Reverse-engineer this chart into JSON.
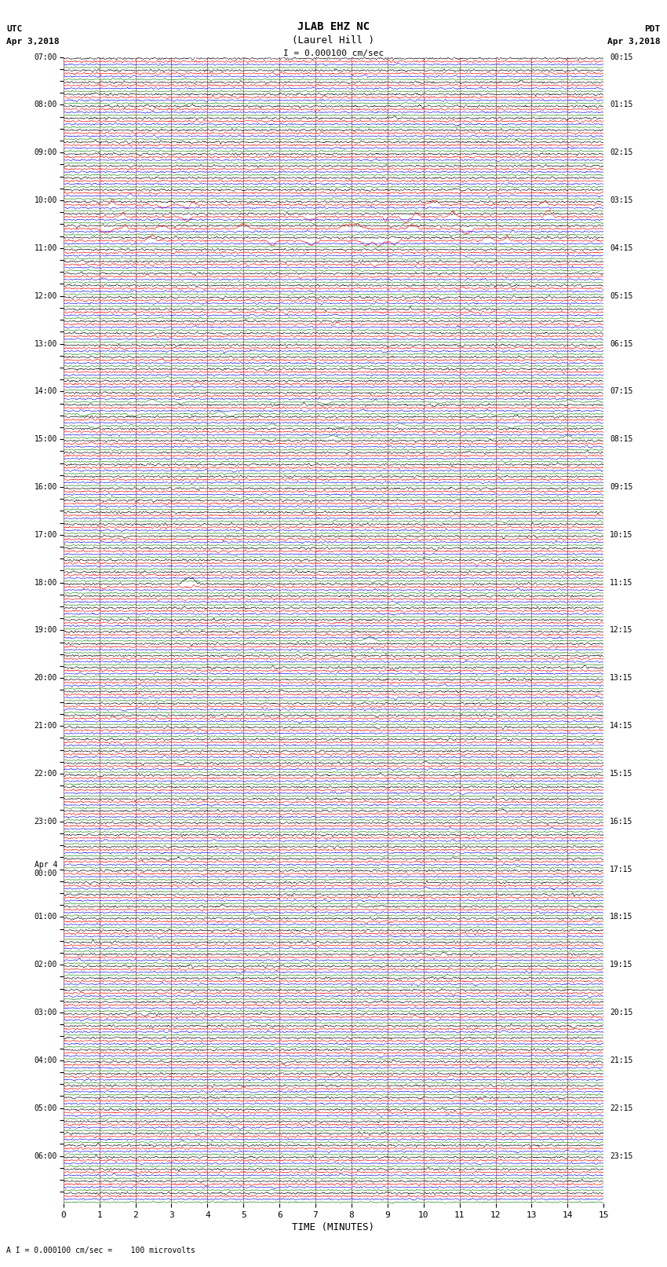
{
  "title_line1": "JLAB EHZ NC",
  "title_line2": "(Laurel Hill )",
  "scale_label": "I = 0.000100 cm/sec",
  "left_header_line1": "UTC",
  "left_header_line2": "Apr 3,2018",
  "right_header_line1": "PDT",
  "right_header_line2": "Apr 3,2018",
  "bottom_label": "TIME (MINUTES)",
  "bottom_note": "A I = 0.000100 cm/sec =    100 microvolts",
  "xlabel_ticks": [
    0,
    1,
    2,
    3,
    4,
    5,
    6,
    7,
    8,
    9,
    10,
    11,
    12,
    13,
    14,
    15
  ],
  "left_times": [
    "07:00",
    "",
    "",
    "",
    "08:00",
    "",
    "",
    "",
    "09:00",
    "",
    "",
    "",
    "10:00",
    "",
    "",
    "",
    "11:00",
    "",
    "",
    "",
    "12:00",
    "",
    "",
    "",
    "13:00",
    "",
    "",
    "",
    "14:00",
    "",
    "",
    "",
    "15:00",
    "",
    "",
    "",
    "16:00",
    "",
    "",
    "",
    "17:00",
    "",
    "",
    "",
    "18:00",
    "",
    "",
    "",
    "19:00",
    "",
    "",
    "",
    "20:00",
    "",
    "",
    "",
    "21:00",
    "",
    "",
    "",
    "22:00",
    "",
    "",
    "",
    "23:00",
    "",
    "",
    "",
    "Apr 4\n00:00",
    "",
    "",
    "",
    "01:00",
    "",
    "",
    "",
    "02:00",
    "",
    "",
    "",
    "03:00",
    "",
    "",
    "",
    "04:00",
    "",
    "",
    "",
    "05:00",
    "",
    "",
    "",
    "06:00",
    "",
    "",
    ""
  ],
  "right_times": [
    "00:15",
    "",
    "",
    "",
    "01:15",
    "",
    "",
    "",
    "02:15",
    "",
    "",
    "",
    "03:15",
    "",
    "",
    "",
    "04:15",
    "",
    "",
    "",
    "05:15",
    "",
    "",
    "",
    "06:15",
    "",
    "",
    "",
    "07:15",
    "",
    "",
    "",
    "08:15",
    "",
    "",
    "",
    "09:15",
    "",
    "",
    "",
    "10:15",
    "",
    "",
    "",
    "11:15",
    "",
    "",
    "",
    "12:15",
    "",
    "",
    "",
    "13:15",
    "",
    "",
    "",
    "14:15",
    "",
    "",
    "",
    "15:15",
    "",
    "",
    "",
    "16:15",
    "",
    "",
    "",
    "17:15",
    "",
    "",
    "",
    "18:15",
    "",
    "",
    "",
    "19:15",
    "",
    "",
    "",
    "20:15",
    "",
    "",
    "",
    "21:15",
    "",
    "",
    "",
    "22:15",
    "",
    "",
    "",
    "23:15",
    "",
    "",
    ""
  ],
  "trace_colors": [
    "black",
    "red",
    "blue",
    "green"
  ],
  "n_rows": 96,
  "bg_color": "white",
  "grid_color": "#999999",
  "vline_color": "#cc4444"
}
